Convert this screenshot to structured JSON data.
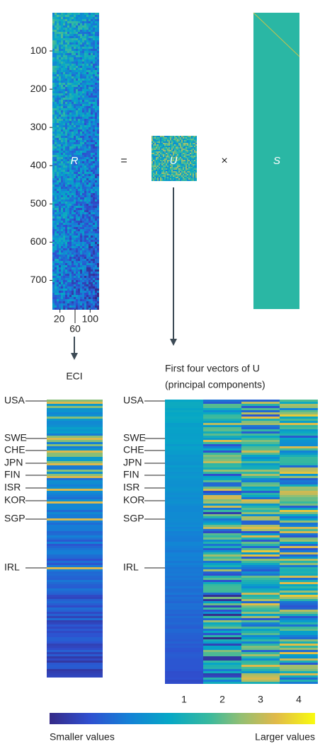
{
  "matrix_R": {
    "label": "R",
    "yticks": [
      100,
      200,
      300,
      400,
      500,
      600,
      700
    ],
    "ylim": [
      0,
      775
    ],
    "xticks": [
      20,
      60,
      100
    ],
    "xlim": [
      0,
      120
    ]
  },
  "equals": "=",
  "matrix_U": {
    "label": "U"
  },
  "times": "×",
  "matrix_S": {
    "label": "S"
  },
  "eci_title": "ECI",
  "pc_title": [
    "First four vectors of U",
    "(principal components)"
  ],
  "countries": [
    "USA",
    "SWE",
    "CHE",
    "JPN",
    "FIN",
    "ISR",
    "KOR",
    "SGP",
    "IRL"
  ],
  "pc_columns": [
    "1",
    "2",
    "3",
    "4"
  ],
  "colorbar": {
    "low_label": "Smaller values",
    "high_label": "Larger values"
  }
}
